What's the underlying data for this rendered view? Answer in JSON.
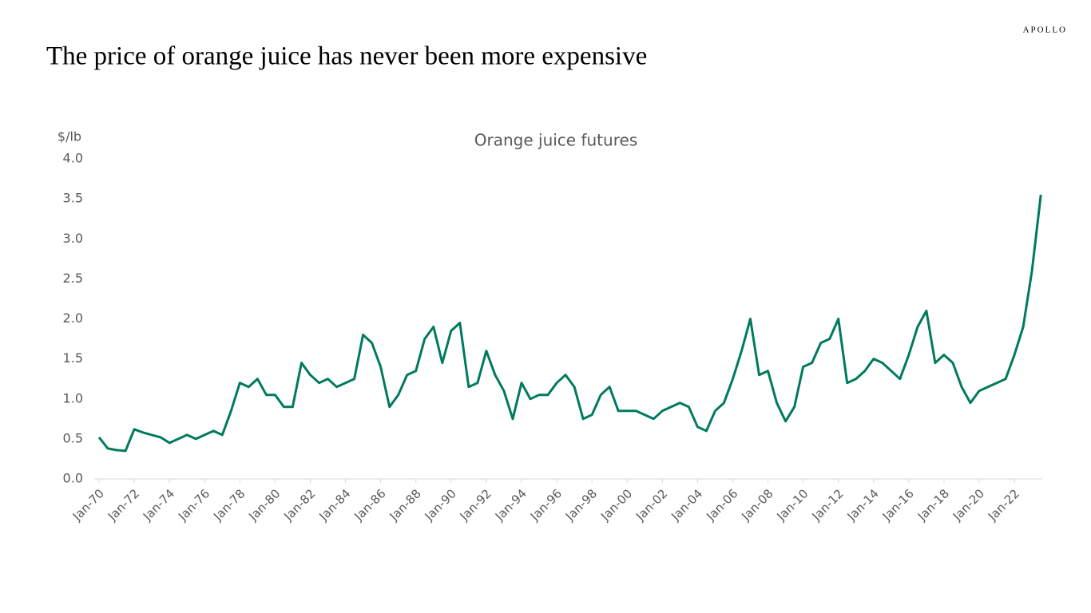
{
  "brand": "APOLLO",
  "chart_data": {
    "type": "line",
    "title": "The price of orange juice has never been more expensive",
    "subtitle": "Orange juice futures",
    "y_label": "$/lb",
    "x": [
      "1970-01",
      "1970-07",
      "1971-01",
      "1971-07",
      "1972-01",
      "1972-07",
      "1973-01",
      "1973-07",
      "1974-01",
      "1974-07",
      "1975-01",
      "1975-07",
      "1976-01",
      "1976-07",
      "1977-01",
      "1977-07",
      "1978-01",
      "1978-07",
      "1979-01",
      "1979-07",
      "1980-01",
      "1980-07",
      "1981-01",
      "1981-07",
      "1982-01",
      "1982-07",
      "1983-01",
      "1983-07",
      "1984-01",
      "1984-07",
      "1985-01",
      "1985-07",
      "1986-01",
      "1986-07",
      "1987-01",
      "1987-07",
      "1988-01",
      "1988-07",
      "1989-01",
      "1989-07",
      "1990-01",
      "1990-07",
      "1991-01",
      "1991-07",
      "1992-01",
      "1992-07",
      "1993-01",
      "1993-07",
      "1994-01",
      "1994-07",
      "1995-01",
      "1995-07",
      "1996-01",
      "1996-07",
      "1997-01",
      "1997-07",
      "1998-01",
      "1998-07",
      "1999-01",
      "1999-07",
      "2000-01",
      "2000-07",
      "2001-01",
      "2001-07",
      "2002-01",
      "2002-07",
      "2003-01",
      "2003-07",
      "2004-01",
      "2004-07",
      "2005-01",
      "2005-07",
      "2006-01",
      "2006-07",
      "2007-01",
      "2007-07",
      "2008-01",
      "2008-07",
      "2009-01",
      "2009-07",
      "2010-01",
      "2010-07",
      "2011-01",
      "2011-07",
      "2012-01",
      "2012-07",
      "2013-01",
      "2013-07",
      "2014-01",
      "2014-07",
      "2015-01",
      "2015-07",
      "2016-01",
      "2016-07",
      "2017-01",
      "2017-07",
      "2018-01",
      "2018-07",
      "2019-01",
      "2019-07",
      "2020-01",
      "2020-07",
      "2021-01",
      "2021-07",
      "2022-01",
      "2022-07",
      "2023-01",
      "2023-07"
    ],
    "series": [
      {
        "name": "Orange juice futures",
        "color": "#007a5e",
        "values": [
          0.52,
          0.38,
          0.36,
          0.35,
          0.62,
          0.58,
          0.55,
          0.52,
          0.45,
          0.5,
          0.55,
          0.5,
          0.55,
          0.6,
          0.55,
          0.85,
          1.2,
          1.15,
          1.25,
          1.05,
          1.05,
          0.9,
          0.9,
          1.45,
          1.3,
          1.2,
          1.25,
          1.15,
          1.2,
          1.25,
          1.8,
          1.7,
          1.4,
          0.9,
          1.05,
          1.3,
          1.35,
          1.75,
          1.9,
          1.45,
          1.85,
          1.95,
          1.15,
          1.2,
          1.6,
          1.3,
          1.1,
          0.75,
          1.2,
          1.0,
          1.05,
          1.05,
          1.2,
          1.3,
          1.15,
          0.75,
          0.8,
          1.05,
          1.15,
          0.85,
          0.85,
          0.85,
          0.8,
          0.75,
          0.85,
          0.9,
          0.95,
          0.9,
          0.65,
          0.6,
          0.85,
          0.95,
          1.25,
          1.6,
          2.0,
          1.3,
          1.35,
          0.95,
          0.72,
          0.9,
          1.4,
          1.45,
          1.7,
          1.75,
          2.0,
          1.2,
          1.25,
          1.35,
          1.5,
          1.45,
          1.35,
          1.25,
          1.55,
          1.9,
          2.1,
          1.45,
          1.55,
          1.45,
          1.15,
          0.95,
          1.1,
          1.15,
          1.2,
          1.25,
          1.55,
          1.9,
          2.6,
          3.55
        ]
      }
    ],
    "xlim": [
      "1970-01",
      "2023-08"
    ],
    "xticks": [
      {
        "value": "1970-01",
        "label": "Jan-70"
      },
      {
        "value": "1972-01",
        "label": "Jan-72"
      },
      {
        "value": "1974-01",
        "label": "Jan-74"
      },
      {
        "value": "1976-01",
        "label": "Jan-76"
      },
      {
        "value": "1978-01",
        "label": "Jan-78"
      },
      {
        "value": "1980-01",
        "label": "Jan-80"
      },
      {
        "value": "1982-01",
        "label": "Jan-82"
      },
      {
        "value": "1984-01",
        "label": "Jan-84"
      },
      {
        "value": "1986-01",
        "label": "Jan-86"
      },
      {
        "value": "1988-01",
        "label": "Jan-88"
      },
      {
        "value": "1990-01",
        "label": "Jan-90"
      },
      {
        "value": "1992-01",
        "label": "Jan-92"
      },
      {
        "value": "1994-01",
        "label": "Jan-94"
      },
      {
        "value": "1996-01",
        "label": "Jan-96"
      },
      {
        "value": "1998-01",
        "label": "Jan-98"
      },
      {
        "value": "2000-01",
        "label": "Jan-00"
      },
      {
        "value": "2002-01",
        "label": "Jan-02"
      },
      {
        "value": "2004-01",
        "label": "Jan-04"
      },
      {
        "value": "2006-01",
        "label": "Jan-06"
      },
      {
        "value": "2008-01",
        "label": "Jan-08"
      },
      {
        "value": "2010-01",
        "label": "Jan-10"
      },
      {
        "value": "2012-01",
        "label": "Jan-12"
      },
      {
        "value": "2014-01",
        "label": "Jan-14"
      },
      {
        "value": "2016-01",
        "label": "Jan-16"
      },
      {
        "value": "2018-01",
        "label": "Jan-18"
      },
      {
        "value": "2020-01",
        "label": "Jan-20"
      },
      {
        "value": "2022-01",
        "label": "Jan-22"
      }
    ],
    "ylim": [
      0,
      4
    ],
    "yticks": [
      {
        "value": 0,
        "label": "0.0"
      },
      {
        "value": 0.5,
        "label": "0.5"
      },
      {
        "value": 1,
        "label": "1.0"
      },
      {
        "value": 1.5,
        "label": "1.5"
      },
      {
        "value": 2,
        "label": "2.0"
      },
      {
        "value": 2.5,
        "label": "2.5"
      },
      {
        "value": 3,
        "label": "3.0"
      },
      {
        "value": 3.5,
        "label": "3.5"
      },
      {
        "value": 4,
        "label": "4.0"
      }
    ],
    "grid": false
  }
}
